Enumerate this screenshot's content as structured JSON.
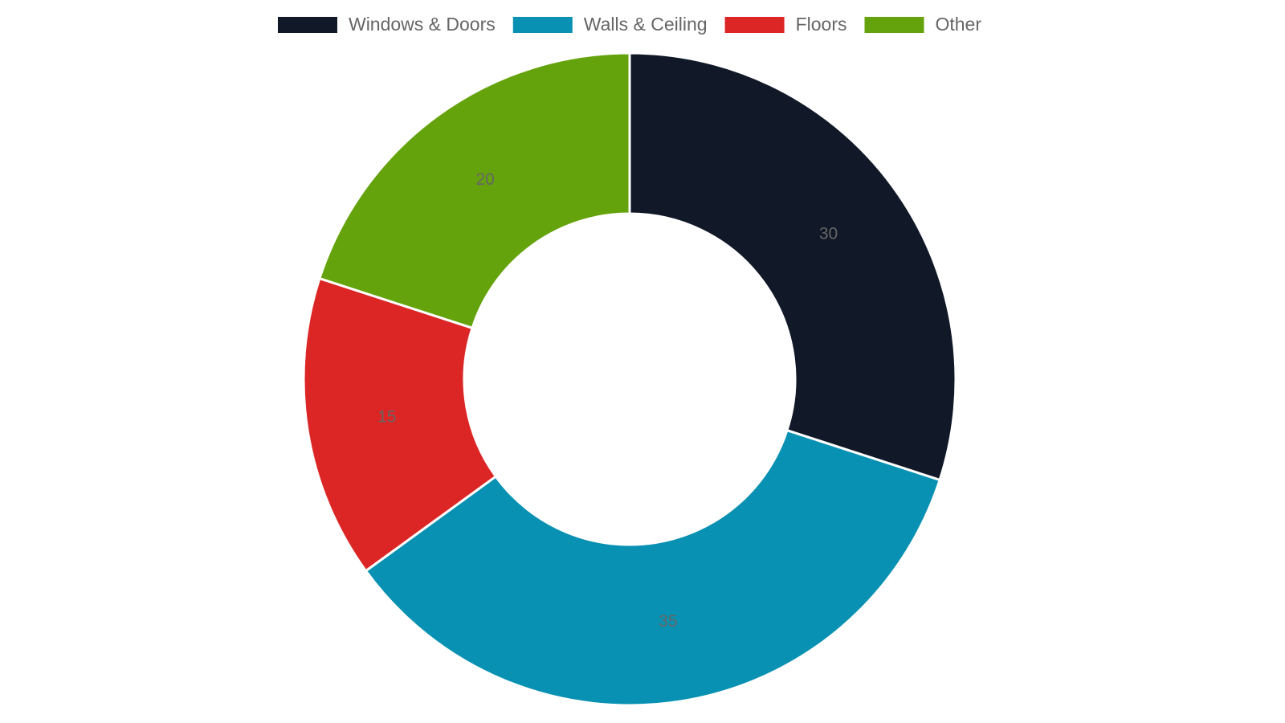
{
  "chart_data": {
    "type": "doughnut",
    "categories": [
      "Windows & Doors",
      "Walls & Ceiling",
      "Floors",
      "Other"
    ],
    "values": [
      30,
      35,
      15,
      20
    ],
    "colors": [
      "#111827",
      "#0891b2",
      "#dc2626",
      "#65a30d"
    ],
    "legend": "top"
  }
}
